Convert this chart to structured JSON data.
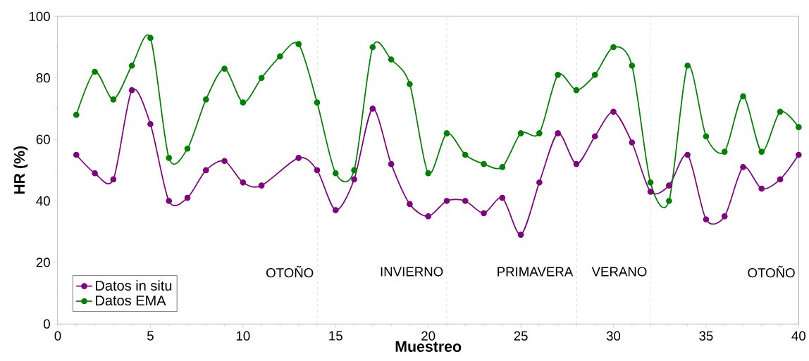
{
  "chart_data": {
    "type": "line",
    "xlabel": "Muestreo",
    "ylabel": "HR (%)",
    "xlim": [
      0,
      40
    ],
    "xticks": [
      0,
      5,
      10,
      15,
      20,
      25,
      30,
      35,
      40
    ],
    "ylim": [
      0,
      100
    ],
    "yticks": [
      0,
      20,
      40,
      60,
      80,
      100
    ],
    "x": [
      1,
      2,
      3,
      4,
      5,
      6,
      7,
      8,
      9,
      10,
      11,
      12,
      13,
      14,
      15,
      16,
      17,
      18,
      19,
      20,
      21,
      22,
      23,
      24,
      25,
      26,
      27,
      28,
      29,
      30,
      31,
      32,
      33,
      34,
      35,
      36,
      37,
      38,
      39,
      40
    ],
    "series": [
      {
        "name": "Datos in situ",
        "color": "#800080",
        "x": [
          1,
          2,
          3,
          4,
          5,
          6,
          7,
          8,
          9,
          10,
          11,
          13,
          14,
          15,
          16,
          17,
          18,
          19,
          20,
          21,
          22,
          23,
          24,
          25,
          26,
          27,
          28,
          29,
          30,
          31,
          32,
          33,
          34,
          35,
          36,
          37,
          38,
          39,
          40
        ],
        "values": [
          55,
          49,
          47,
          76,
          65,
          40,
          41,
          50,
          53,
          46,
          45,
          54,
          50,
          37,
          47,
          70,
          52,
          39,
          35,
          40,
          40,
          36,
          41,
          29,
          46,
          62,
          52,
          61,
          69,
          59,
          43,
          45,
          55,
          34,
          35,
          51,
          44,
          47,
          55
        ]
      },
      {
        "name": "Datos EMA",
        "color": "#008000",
        "values": [
          68,
          82,
          73,
          84,
          93,
          54,
          57,
          73,
          83,
          72,
          80,
          87,
          91,
          72,
          49,
          50,
          90,
          86,
          78,
          49,
          62,
          55,
          52,
          51,
          62,
          62,
          81,
          76,
          81,
          90,
          84,
          46,
          40,
          84,
          61,
          56,
          74,
          56,
          69,
          64
        ]
      }
    ],
    "ref_lines": [
      {
        "axis": "x",
        "value": 14,
        "color": "#b0b0b0",
        "line_style": "dashed"
      },
      {
        "axis": "x",
        "value": 21,
        "color": "#b0b0b0",
        "line_style": "dashed"
      },
      {
        "axis": "x",
        "value": 28,
        "color": "#b0b0b0",
        "line_style": "dashed"
      },
      {
        "axis": "x",
        "value": 32,
        "color": "#b0b0b0",
        "line_style": "dashed"
      }
    ],
    "bands": [
      {
        "axis": "x",
        "from": 0,
        "to": 14,
        "label": "OTOÑO",
        "color": "#ffffff"
      },
      {
        "axis": "x",
        "from": 14,
        "to": 21,
        "label": "INVIERNO",
        "color": "#ffffff"
      },
      {
        "axis": "x",
        "from": 21,
        "to": 28,
        "label": "PRIMAVERA",
        "color": "#ffffff"
      },
      {
        "axis": "x",
        "from": 28,
        "to": 32,
        "label": "VERANO",
        "color": "#ffffff"
      },
      {
        "axis": "x",
        "from": 32,
        "to": 40,
        "label": "OTOÑO",
        "color": "#ffffff"
      }
    ],
    "legend": "bottom left",
    "marker": "circle",
    "line_style": "solid",
    "grid": false
  }
}
